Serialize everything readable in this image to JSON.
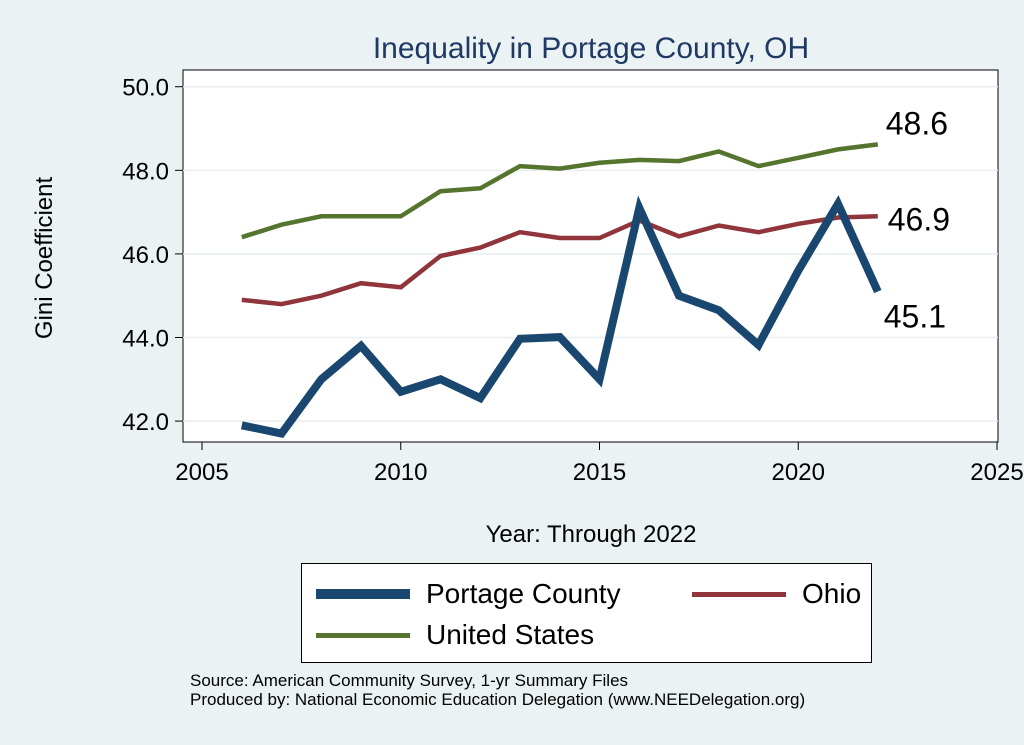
{
  "chart_data": {
    "type": "line",
    "title": "Inequality in Portage County, OH",
    "xlabel": "Year: Through 2022",
    "ylabel": "Gini Coefficient",
    "xlim": [
      2005,
      2025
    ],
    "ylim": [
      41.5,
      50.4
    ],
    "x_ticks": [
      "2005",
      "2010",
      "2015",
      "2020",
      "2025"
    ],
    "x_tick_values": [
      2005,
      2010,
      2015,
      2020,
      2025
    ],
    "y_ticks": [
      "42.0",
      "44.0",
      "46.0",
      "48.0",
      "50.0"
    ],
    "y_tick_values": [
      42,
      44,
      46,
      48,
      50
    ],
    "x": [
      2006,
      2007,
      2008,
      2009,
      2010,
      2011,
      2012,
      2013,
      2014,
      2015,
      2016,
      2017,
      2018,
      2019,
      2020,
      2021,
      2022
    ],
    "series": [
      {
        "name": "Portage County",
        "color": "#1a476f",
        "values": [
          41.9,
          41.7,
          43.0,
          43.8,
          42.7,
          43.0,
          42.55,
          43.97,
          44.01,
          43.0,
          47.1,
          45.0,
          44.65,
          43.82,
          45.6,
          47.2,
          45.1
        ],
        "end_label": "45.1"
      },
      {
        "name": "Ohio",
        "color": "#90353b",
        "values": [
          44.9,
          44.8,
          45.0,
          45.3,
          45.2,
          45.95,
          46.15,
          46.52,
          46.38,
          46.38,
          46.8,
          46.42,
          46.68,
          46.52,
          46.72,
          46.87,
          46.9
        ],
        "end_label": "46.9"
      },
      {
        "name": "United States",
        "color": "#55752f",
        "values": [
          46.4,
          46.7,
          46.9,
          46.9,
          46.9,
          47.5,
          47.57,
          48.1,
          48.04,
          48.18,
          48.25,
          48.22,
          48.45,
          48.1,
          48.3,
          48.5,
          48.62
        ],
        "end_label": "48.6"
      }
    ],
    "legend": [
      {
        "name": "Portage County",
        "color": "#1a476f"
      },
      {
        "name": "Ohio",
        "color": "#90353b"
      },
      {
        "name": "United States",
        "color": "#55752f"
      }
    ],
    "legend_position": "bottom"
  },
  "footer": {
    "source": "Source: American Community Survey, 1-yr Summary Files",
    "produced_by": "Produced by: National Economic Education Delegation (www.NEEDelegation.org)"
  }
}
